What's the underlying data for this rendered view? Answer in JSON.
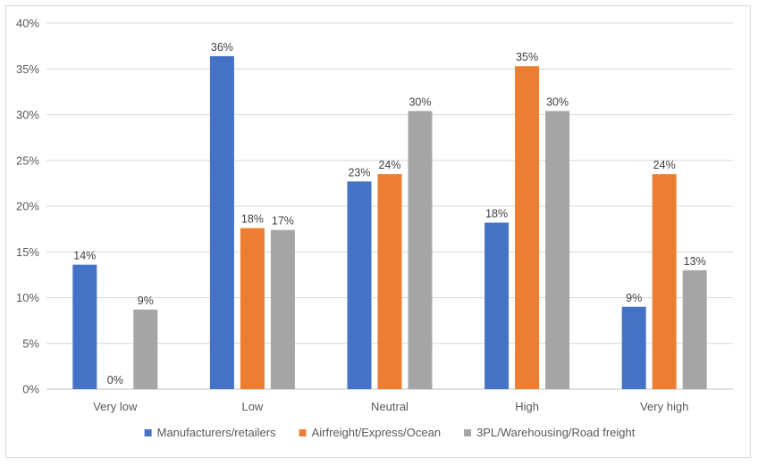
{
  "chart_data": {
    "type": "bar",
    "title": "",
    "xlabel": "",
    "ylabel": "",
    "ylim": [
      0,
      40
    ],
    "yticks": [
      "0%",
      "5%",
      "10%",
      "15%",
      "20%",
      "25%",
      "30%",
      "35%",
      "40%"
    ],
    "grid": true,
    "legend_position": "bottom",
    "categories": [
      "Very low",
      "Low",
      "Neutral",
      "High",
      "Very high"
    ],
    "series": [
      {
        "name": "Manufacturers/retailers",
        "color": "#4472c4",
        "values": [
          13.6,
          36.4,
          22.7,
          18.2,
          9.0
        ],
        "labels": [
          "14%",
          "36%",
          "23%",
          "18%",
          "9%"
        ]
      },
      {
        "name": "Airfreight/Express/Ocean",
        "color": "#ed7d31",
        "values": [
          0,
          17.6,
          23.5,
          35.3,
          23.5
        ],
        "labels": [
          "0%",
          "18%",
          "24%",
          "35%",
          "24%"
        ]
      },
      {
        "name": "3PL/Warehousing/Road freight",
        "color": "#a5a5a5",
        "values": [
          8.7,
          17.4,
          30.4,
          30.4,
          13.0
        ],
        "labels": [
          "9%",
          "17%",
          "30%",
          "30%",
          "13%"
        ]
      }
    ]
  }
}
